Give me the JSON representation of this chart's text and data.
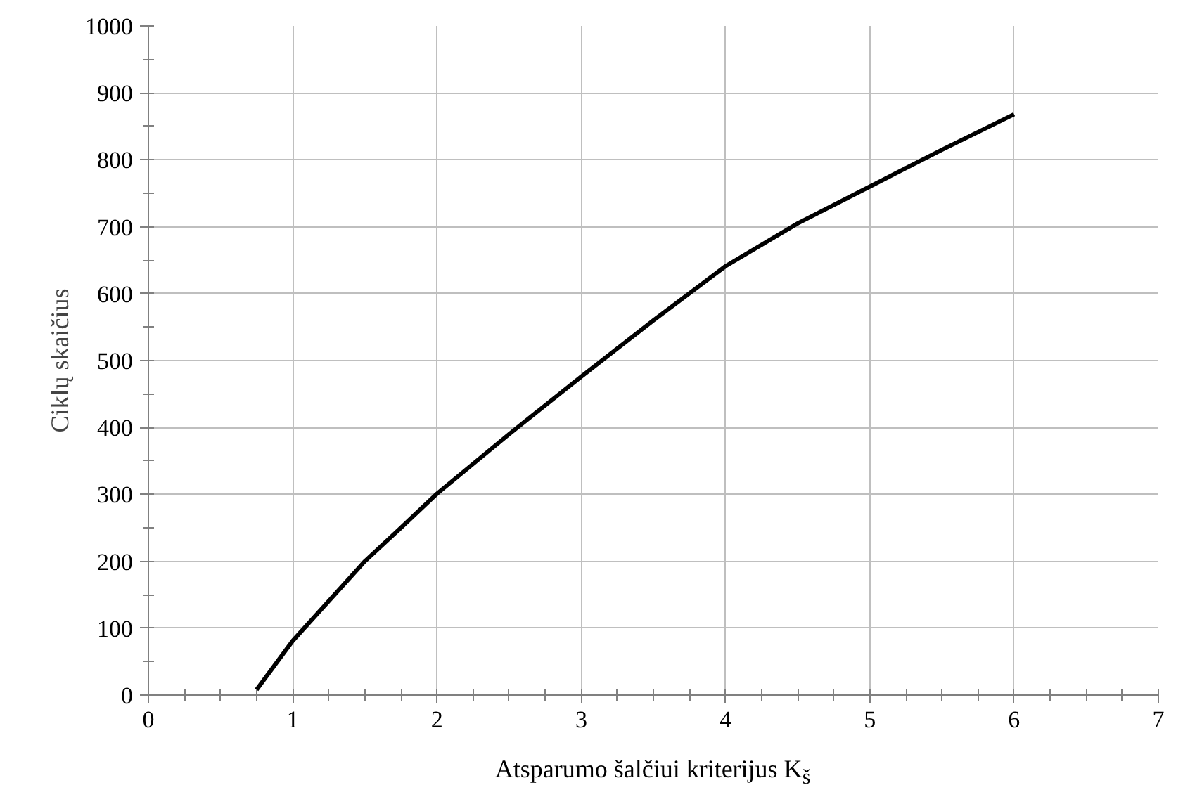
{
  "chart_data": {
    "type": "line",
    "xlabel": "Atsparumo šalčiui kriterijus K$_{š}$",
    "ylabel": "Ciklų skaičius",
    "x": [
      0.75,
      1,
      1.5,
      1.75,
      2,
      2.5,
      3,
      3.5,
      4,
      4.5,
      5,
      5.5,
      6
    ],
    "series": [
      {
        "color": "#000000",
        "values": [
          8,
          81,
          200,
          250,
          301,
          390,
          476,
          560,
          641,
          705,
          760,
          815,
          868
        ]
      }
    ],
    "xlim": [
      0,
      7
    ],
    "ylim": [
      0,
      1000
    ],
    "xticks": [
      0,
      1,
      2,
      3,
      4,
      5,
      6,
      7
    ],
    "yticks": [
      0,
      100,
      200,
      300,
      400,
      500,
      600,
      700,
      800,
      900,
      1000
    ],
    "grid": true,
    "marker": "none",
    "line_style": "solid"
  }
}
